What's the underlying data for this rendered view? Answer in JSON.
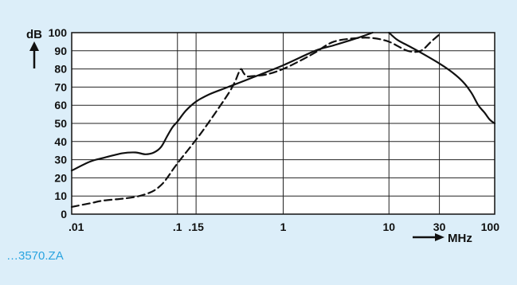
{
  "chart_data": {
    "type": "line",
    "title": "",
    "xlabel": "MHz",
    "ylabel": "dB",
    "xscale": "log",
    "xlim": [
      0.01,
      100
    ],
    "ylim": [
      0,
      100
    ],
    "x_ticks": [
      {
        "value": 0.01,
        "label": ".01"
      },
      {
        "value": 0.1,
        "label": ".1"
      },
      {
        "value": 0.15,
        "label": ".15"
      },
      {
        "value": 1,
        "label": "1"
      },
      {
        "value": 10,
        "label": "10"
      },
      {
        "value": 30,
        "label": "30"
      },
      {
        "value": 100,
        "label": "100"
      }
    ],
    "y_ticks": [
      0,
      10,
      20,
      30,
      40,
      50,
      60,
      70,
      80,
      90,
      100
    ],
    "grid": true,
    "series": [
      {
        "style": "solid",
        "x": [
          0.01,
          0.015,
          0.02,
          0.03,
          0.04,
          0.05,
          0.06,
          0.07,
          0.08,
          0.09,
          0.1,
          0.12,
          0.15,
          0.2,
          0.3,
          0.5,
          1,
          2,
          3,
          5,
          7
        ],
        "y": [
          24,
          29,
          31,
          33.5,
          34,
          33,
          34,
          37,
          43,
          48,
          51,
          57,
          62,
          66,
          70,
          75,
          82,
          90,
          93,
          97,
          100
        ]
      },
      {
        "style": "solid",
        "x": [
          10,
          12,
          15,
          20,
          30,
          40,
          50,
          60,
          70,
          80,
          90,
          100
        ],
        "y": [
          100,
          96,
          93,
          89,
          83,
          78,
          73,
          67,
          60,
          56,
          52,
          50
        ]
      },
      {
        "style": "dashed",
        "x": [
          0.01,
          0.015,
          0.02,
          0.03,
          0.04,
          0.05,
          0.06,
          0.07,
          0.08,
          0.1,
          0.15,
          0.2,
          0.3,
          0.35,
          0.38,
          0.4,
          0.42,
          0.45,
          0.5,
          0.7,
          1,
          1.5,
          2,
          3,
          5,
          7,
          10,
          15,
          20,
          25,
          30
        ],
        "y": [
          4,
          6,
          7.5,
          8.5,
          9.5,
          11,
          13,
          16,
          20,
          28,
          41,
          51,
          66,
          73,
          78,
          80,
          78,
          76,
          76,
          77,
          80,
          85,
          89,
          95,
          97,
          97,
          95,
          90,
          90,
          95,
          99
        ]
      }
    ]
  },
  "caption": "…3570.ZA"
}
